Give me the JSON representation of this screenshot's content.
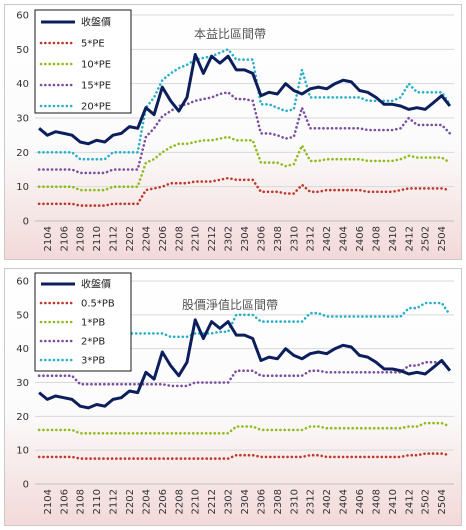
{
  "chart_data": [
    {
      "type": "line",
      "title": "本益比區間帶",
      "xlabel": "",
      "ylabel": "",
      "ylim": [
        0,
        60
      ],
      "yticks": [
        0,
        10,
        20,
        30,
        40,
        50,
        60
      ],
      "x": [
        "2103",
        "2104",
        "2105",
        "2106",
        "2107",
        "2108",
        "2109",
        "2110",
        "2111",
        "2112",
        "2201",
        "2202",
        "2203",
        "2204",
        "2205",
        "2206",
        "2207",
        "2208",
        "2209",
        "2210",
        "2211",
        "2212",
        "2301",
        "2302",
        "2303",
        "2304",
        "2305",
        "2306",
        "2307",
        "2308",
        "2309",
        "2310",
        "2311",
        "2312",
        "2401",
        "2402",
        "2403",
        "2404",
        "2405",
        "2406",
        "2407",
        "2408",
        "2409",
        "2410",
        "2411",
        "2412",
        "2501",
        "2502",
        "2503",
        "2504",
        "2505"
      ],
      "xticks": [
        "2104",
        "2106",
        "2108",
        "2110",
        "2112",
        "2202",
        "2204",
        "2206",
        "2208",
        "2210",
        "2212",
        "2302",
        "2304",
        "2306",
        "2308",
        "2310",
        "2312",
        "2402",
        "2404",
        "2406",
        "2408",
        "2410",
        "2412",
        "2502",
        "2504"
      ],
      "grid": "horizontal",
      "legend_position": "top-left",
      "series": [
        {
          "name": "收盤價",
          "color": "#0c1f5c",
          "style": "solid",
          "values": [
            27,
            25,
            26,
            25.5,
            25,
            23,
            22.5,
            23.5,
            23,
            25,
            25.5,
            27.5,
            27,
            33,
            31,
            39,
            35,
            32,
            36,
            48.5,
            43,
            48,
            46,
            48,
            44,
            44,
            43,
            36.5,
            37.5,
            37,
            40,
            38,
            37,
            38.5,
            39,
            38.5,
            40,
            41,
            40.5,
            38,
            37.5,
            36,
            34,
            34,
            33.5,
            32.5,
            33,
            32.5,
            34.5,
            36.5,
            33.5
          ]
        },
        {
          "name": "5*PE",
          "color": "#c0392b",
          "style": "dotted",
          "values": [
            5,
            5,
            5,
            5,
            5,
            4.5,
            4.5,
            4.5,
            4.5,
            5,
            5,
            5,
            5,
            9,
            9.5,
            10,
            11,
            11,
            11,
            11.5,
            11.5,
            11.5,
            12,
            12.5,
            12,
            12,
            12,
            8.5,
            8.5,
            8.5,
            8,
            8,
            10.5,
            8.5,
            8.5,
            9,
            9,
            9,
            9,
            9,
            8.5,
            8.5,
            8.5,
            8.5,
            9,
            9.5,
            9.5,
            9.5,
            9.5,
            9.5,
            9
          ]
        },
        {
          "name": "10*PE",
          "color": "#8fbc1f",
          "style": "dotted",
          "values": [
            10,
            10,
            10,
            10,
            10,
            9,
            9,
            9,
            9,
            10,
            10,
            10,
            10,
            17,
            18,
            20,
            21.5,
            22.5,
            22.5,
            23,
            23.5,
            23.5,
            24,
            24.5,
            23.5,
            23.5,
            23.5,
            17,
            17,
            17,
            16,
            16.5,
            22,
            17.5,
            17.5,
            18,
            18,
            18,
            18,
            18,
            17.5,
            17.5,
            17.5,
            17.5,
            18,
            19,
            18.5,
            18.5,
            18.5,
            18.5,
            17
          ]
        },
        {
          "name": "15*PE",
          "color": "#7b4ea3",
          "style": "dotted",
          "values": [
            15,
            15,
            15,
            15,
            15,
            14,
            14,
            14,
            14,
            15,
            15,
            15,
            15,
            24.5,
            27,
            30.5,
            32,
            33.5,
            34,
            35,
            35.5,
            36,
            37,
            37.5,
            35.5,
            35.5,
            35,
            25.5,
            25.5,
            25,
            24,
            24.5,
            33,
            27,
            27,
            27,
            27,
            27,
            27,
            27,
            26.5,
            26.5,
            26.5,
            26.5,
            27,
            30,
            28,
            28,
            28,
            28,
            25.5
          ]
        },
        {
          "name": "20*PE",
          "color": "#2ab0c9",
          "style": "dotted",
          "values": [
            20,
            20,
            20,
            20,
            20,
            18,
            18,
            18,
            18,
            20,
            20,
            20,
            20,
            33,
            36,
            41,
            43,
            44.5,
            45.5,
            47,
            47.5,
            48,
            49,
            50,
            47,
            47,
            47,
            34,
            34,
            33,
            32,
            32.5,
            44,
            36,
            36,
            36,
            36,
            36,
            36,
            36,
            35,
            35,
            35,
            35,
            36,
            40,
            37.5,
            37.5,
            37.5,
            37.5,
            34
          ]
        }
      ]
    },
    {
      "type": "line",
      "title": "股價淨值比區間帶",
      "xlabel": "",
      "ylabel": "",
      "ylim": [
        0,
        60
      ],
      "yticks": [
        0,
        10,
        20,
        30,
        40,
        50,
        60
      ],
      "x": [
        "2103",
        "2104",
        "2105",
        "2106",
        "2107",
        "2108",
        "2109",
        "2110",
        "2111",
        "2112",
        "2201",
        "2202",
        "2203",
        "2204",
        "2205",
        "2206",
        "2207",
        "2208",
        "2209",
        "2210",
        "2211",
        "2212",
        "2301",
        "2302",
        "2303",
        "2304",
        "2305",
        "2306",
        "2307",
        "2308",
        "2309",
        "2310",
        "2311",
        "2312",
        "2401",
        "2402",
        "2403",
        "2404",
        "2405",
        "2406",
        "2407",
        "2408",
        "2409",
        "2410",
        "2411",
        "2412",
        "2501",
        "2502",
        "2503",
        "2504",
        "2505"
      ],
      "xticks": [
        "2104",
        "2106",
        "2108",
        "2110",
        "2112",
        "2202",
        "2204",
        "2206",
        "2208",
        "2210",
        "2212",
        "2302",
        "2304",
        "2306",
        "2308",
        "2310",
        "2312",
        "2402",
        "2404",
        "2406",
        "2408",
        "2410",
        "2412",
        "2502",
        "2504"
      ],
      "grid": "horizontal",
      "legend_position": "top-left",
      "series": [
        {
          "name": "收盤價",
          "color": "#0c1f5c",
          "style": "solid",
          "values": [
            27,
            25,
            26,
            25.5,
            25,
            23,
            22.5,
            23.5,
            23,
            25,
            25.5,
            27.5,
            27,
            33,
            31,
            39,
            35,
            32,
            36,
            48.5,
            43,
            48,
            46,
            48,
            44,
            44,
            43,
            36.5,
            37.5,
            37,
            40,
            38,
            37,
            38.5,
            39,
            38.5,
            40,
            41,
            40.5,
            38,
            37.5,
            36,
            34,
            34,
            33.5,
            32.5,
            33,
            32.5,
            34.5,
            36.5,
            33.5
          ]
        },
        {
          "name": "0.5*PB",
          "color": "#c0392b",
          "style": "dotted",
          "values": [
            8,
            8,
            8,
            8,
            8,
            7.5,
            7.5,
            7.5,
            7.5,
            7.5,
            7.5,
            7.5,
            7.5,
            7.5,
            7.5,
            7.5,
            7.5,
            7.5,
            7.5,
            7.5,
            7.5,
            7.5,
            7.5,
            7.5,
            8.5,
            8.5,
            8.5,
            8,
            8,
            8,
            8,
            8,
            8,
            8.5,
            8.5,
            8,
            8,
            8,
            8,
            8,
            8,
            8,
            8,
            8,
            8,
            8.5,
            8.5,
            9,
            9,
            9,
            8.5
          ]
        },
        {
          "name": "1*PB",
          "color": "#8fbc1f",
          "style": "dotted",
          "values": [
            16,
            16,
            16,
            16,
            16,
            15,
            15,
            15,
            15,
            15,
            15,
            15,
            15,
            15,
            15,
            15,
            15,
            15,
            15,
            15,
            15,
            15,
            15,
            15,
            17,
            17,
            17,
            16,
            16,
            16,
            16,
            16,
            16,
            17,
            17,
            16.5,
            16.5,
            16.5,
            16.5,
            16.5,
            16.5,
            16.5,
            16.5,
            16.5,
            16.5,
            17,
            17,
            18,
            18,
            18,
            17
          ]
        },
        {
          "name": "2*PB",
          "color": "#7b4ea3",
          "style": "dotted",
          "values": [
            32,
            32,
            32,
            32,
            32,
            29.5,
            29.5,
            29.5,
            29.5,
            29.5,
            29.5,
            29.5,
            29.5,
            29.5,
            29.5,
            29.5,
            29,
            29,
            29,
            30,
            30,
            30,
            30,
            30,
            33.5,
            33.5,
            33.5,
            32,
            32,
            32,
            32,
            32,
            32,
            33.5,
            33.5,
            33,
            33,
            33,
            33,
            33,
            33,
            33,
            33,
            33,
            33,
            35,
            35,
            36,
            36,
            36,
            34
          ]
        },
        {
          "name": "3*PB",
          "color": "#2ab0c9",
          "style": "dotted",
          "values": [
            48,
            48,
            48,
            48,
            48,
            44.5,
            44.5,
            44.5,
            44.5,
            44.5,
            44.5,
            44.5,
            44.5,
            44.5,
            44.5,
            44.5,
            43.5,
            43.5,
            43.5,
            44.5,
            44.5,
            44.5,
            45,
            45,
            50,
            50,
            50,
            48,
            48,
            48,
            48,
            48,
            48,
            50.5,
            50.5,
            49.5,
            49.5,
            49.5,
            49.5,
            49.5,
            49.5,
            49.5,
            49.5,
            49.5,
            49.5,
            52,
            52,
            53.5,
            53.5,
            53.5,
            50
          ]
        }
      ]
    }
  ]
}
